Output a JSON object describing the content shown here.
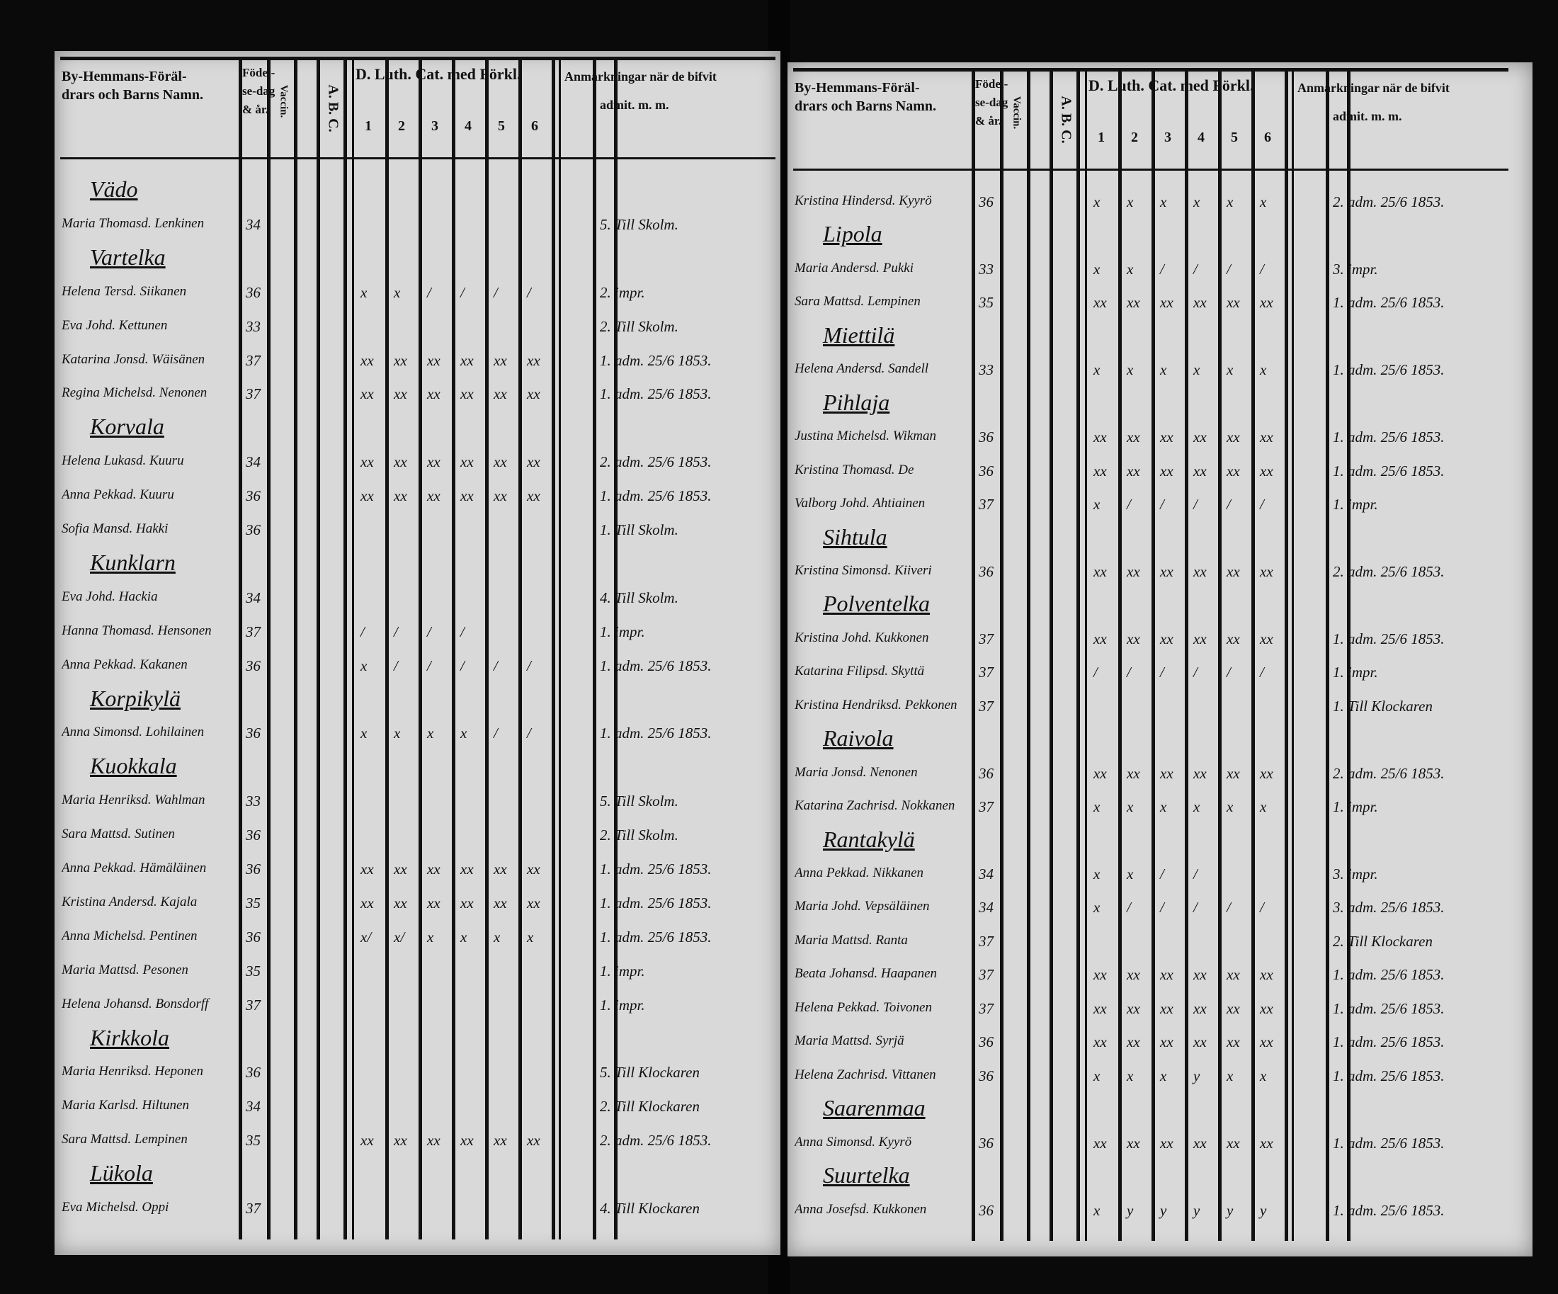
{
  "pages": [
    {
      "header": {
        "name": [
          "By-Hemmans-Föräl-",
          "drars och Barns Namn."
        ],
        "born": [
          "Födel-",
          "se-dag",
          "& år."
        ],
        "vacc": "Vaccin.",
        "abc": "A. B. C.",
        "cat": "D. Luth. Cat. med Förkl.",
        "cat_cols": [
          1,
          2,
          3,
          4,
          5,
          6
        ],
        "remark": [
          "Anmärkningar när de bifvit",
          "admit. m. m."
        ]
      },
      "rows": [
        {
          "village": "Vädo"
        },
        {
          "name": "Maria Thomasd. Lenkinen",
          "year": 34,
          "remark": "5. Till Skolm."
        },
        {
          "village": "Vartelka"
        },
        {
          "name": "Helena Tersd. Siikanen",
          "year": 36,
          "cat": [
            "x",
            "x",
            "/",
            "/",
            "/",
            "/"
          ],
          "remark": "2. impr."
        },
        {
          "name": "Eva Johd. Kettunen",
          "year": 33,
          "remark": "2. Till Skolm."
        },
        {
          "name": "Katarina Jonsd. Wäisänen",
          "year": 37,
          "cat": [
            "xx",
            "xx",
            "xx",
            "xx",
            "xx",
            "xx"
          ],
          "remark": "1. adm. 25/6 1853."
        },
        {
          "name": "Regina Michelsd. Nenonen",
          "year": 37,
          "cat": [
            "xx",
            "xx",
            "xx",
            "xx",
            "xx",
            "xx"
          ],
          "remark": "1. adm. 25/6 1853."
        },
        {
          "village": "Korvala"
        },
        {
          "name": "Helena Lukasd. Kuuru",
          "year": 34,
          "cat": [
            "xx",
            "xx",
            "xx",
            "xx",
            "xx",
            "xx"
          ],
          "remark": "2. adm. 25/6 1853."
        },
        {
          "name": "Anna Pekkad. Kuuru",
          "year": 36,
          "cat": [
            "xx",
            "xx",
            "xx",
            "xx",
            "xx",
            "xx"
          ],
          "remark": "1. adm. 25/6 1853."
        },
        {
          "name": "Sofia Mansd. Hakki",
          "year": 36,
          "remark": "1. Till Skolm."
        },
        {
          "village": "Kunklarn"
        },
        {
          "name": "Eva Johd. Hackia",
          "year": 34,
          "remark": "4. Till Skolm."
        },
        {
          "name": "Hanna Thomasd. Hensonen",
          "year": 37,
          "cat": [
            "/",
            "/",
            "/",
            "/",
            "",
            ""
          ],
          "remark": "1. impr."
        },
        {
          "name": "Anna Pekkad. Kakanen",
          "year": 36,
          "cat": [
            "x",
            "/",
            "/",
            "/",
            "/",
            "/"
          ],
          "remark": "1. adm. 25/6 1853."
        },
        {
          "village": "Korpikylä"
        },
        {
          "name": "Anna Simonsd. Lohilainen",
          "year": 36,
          "cat": [
            "x",
            "x",
            "x",
            "x",
            "/",
            "/"
          ],
          "remark": "1. adm. 25/6 1853."
        },
        {
          "village": "Kuokkala"
        },
        {
          "name": "Maria Henriksd. Wahlman",
          "year": 33,
          "remark": "5. Till Skolm."
        },
        {
          "name": "Sara Mattsd. Sutinen",
          "year": 36,
          "remark": "2. Till Skolm."
        },
        {
          "name": "Anna Pekkad. Hämäläinen",
          "year": 36,
          "cat": [
            "xx",
            "xx",
            "xx",
            "xx",
            "xx",
            "xx"
          ],
          "remark": "1. adm. 25/6 1853."
        },
        {
          "name": "Kristina Andersd. Kajala",
          "year": 35,
          "cat": [
            "xx",
            "xx",
            "xx",
            "xx",
            "xx",
            "xx"
          ],
          "remark": "1. adm. 25/6 1853."
        },
        {
          "name": "Anna Michelsd. Pentinen",
          "year": 36,
          "cat": [
            "x/",
            "x/",
            "x",
            "x",
            "x",
            "x"
          ],
          "remark": "1. adm. 25/6 1853."
        },
        {
          "name": "Maria Mattsd. Pesonen",
          "year": 35,
          "remark": "1. impr."
        },
        {
          "name": "Helena Johansd. Bonsdorff",
          "year": 37,
          "remark": "1. impr."
        },
        {
          "village": "Kirkkola"
        },
        {
          "name": "Maria Henriksd. Heponen",
          "year": 36,
          "remark": "5. Till Klockaren"
        },
        {
          "name": "Maria Karlsd. Hiltunen",
          "year": 34,
          "remark": "2. Till Klockaren"
        },
        {
          "name": "Sara Mattsd. Lempinen",
          "year": 35,
          "cat": [
            "xx",
            "xx",
            "xx",
            "xx",
            "xx",
            "xx"
          ],
          "remark": "2. adm. 25/6 1853."
        },
        {
          "village": "Lükola"
        },
        {
          "name": "Eva Michelsd. Oppi",
          "year": 37,
          "remark": "4. Till Klockaren"
        }
      ]
    },
    {
      "header": {
        "name": [
          "By-Hemmans-Föräl-",
          "drars och Barns Namn."
        ],
        "born": [
          "Födel-",
          "se-dag",
          "& år."
        ],
        "vacc": "Vaccin.",
        "abc": "A. B. C.",
        "cat": "D. Luth. Cat. med Förkl.",
        "cat_cols": [
          1,
          2,
          3,
          4,
          5,
          6
        ],
        "remark": [
          "Anmärkningar när de bifvit",
          "admit. m. m."
        ]
      },
      "rows": [
        {
          "name": "Kristina Hindersd. Kyyrö",
          "year": 36,
          "cat": [
            "x",
            "x",
            "x",
            "x",
            "x",
            "x"
          ],
          "remark": "2. adm. 25/6 1853."
        },
        {
          "village": "Lipola"
        },
        {
          "name": "Maria Andersd. Pukki",
          "year": 33,
          "cat": [
            "x",
            "x",
            "/",
            "/",
            "/",
            "/"
          ],
          "remark": "3. impr."
        },
        {
          "name": "Sara Mattsd. Lempinen",
          "year": 35,
          "cat": [
            "xx",
            "xx",
            "xx",
            "xx",
            "xx",
            "xx"
          ],
          "remark": "1. adm. 25/6 1853."
        },
        {
          "village": "Miettilä"
        },
        {
          "name": "Helena Andersd. Sandell",
          "year": 33,
          "cat": [
            "x",
            "x",
            "x",
            "x",
            "x",
            "x"
          ],
          "remark": "1. adm. 25/6 1853."
        },
        {
          "village": "Pihlaja"
        },
        {
          "name": "Justina Michelsd. Wikman",
          "year": 36,
          "cat": [
            "xx",
            "xx",
            "xx",
            "xx",
            "xx",
            "xx"
          ],
          "remark": "1. adm. 25/6 1853."
        },
        {
          "name": "Kristina Thomasd. De",
          "year": 36,
          "cat": [
            "xx",
            "xx",
            "xx",
            "xx",
            "xx",
            "xx"
          ],
          "remark": "1. adm. 25/6 1853."
        },
        {
          "name": "Valborg Johd. Ahtiainen",
          "year": 37,
          "cat": [
            "x",
            "/",
            "/",
            "/",
            "/",
            "/"
          ],
          "remark": "1. impr."
        },
        {
          "village": "Sihtula"
        },
        {
          "name": "Kristina Simonsd. Kiiveri",
          "year": 36,
          "cat": [
            "xx",
            "xx",
            "xx",
            "xx",
            "xx",
            "xx"
          ],
          "remark": "2. adm. 25/6 1853."
        },
        {
          "village": "Polventelka"
        },
        {
          "name": "Kristina Johd. Kukkonen",
          "year": 37,
          "cat": [
            "xx",
            "xx",
            "xx",
            "xx",
            "xx",
            "xx"
          ],
          "remark": "1. adm. 25/6 1853."
        },
        {
          "name": "Katarina Filipsd. Skyttä",
          "year": 37,
          "cat": [
            "/",
            "/",
            "/",
            "/",
            "/",
            "/"
          ],
          "remark": "1. impr."
        },
        {
          "name": "Kristina Hendriksd. Pekkonen",
          "year": 37,
          "remark": "1. Till Klockaren"
        },
        {
          "village": "Raivola"
        },
        {
          "name": "Maria Jonsd. Nenonen",
          "year": 36,
          "cat": [
            "xx",
            "xx",
            "xx",
            "xx",
            "xx",
            "xx"
          ],
          "remark": "2. adm. 25/6 1853."
        },
        {
          "name": "Katarina Zachrisd. Nokkanen",
          "year": 37,
          "cat": [
            "x",
            "x",
            "x",
            "x",
            "x",
            "x"
          ],
          "remark": "1. impr."
        },
        {
          "village": "Rantakylä"
        },
        {
          "name": "Anna Pekkad. Nikkanen",
          "year": 34,
          "cat": [
            "x",
            "x",
            "/",
            "/",
            "",
            ""
          ],
          "remark": "3. impr."
        },
        {
          "name": "Maria Johd. Vepsäläinen",
          "year": 34,
          "cat": [
            "x",
            "/",
            "/",
            "/",
            "/",
            "/"
          ],
          "remark": "3. adm. 25/6 1853."
        },
        {
          "name": "Maria Mattsd. Ranta",
          "year": 37,
          "remark": "2. Till Klockaren"
        },
        {
          "name": "Beata Johansd. Haapanen",
          "year": 37,
          "cat": [
            "xx",
            "xx",
            "xx",
            "xx",
            "xx",
            "xx"
          ],
          "remark": "1. adm. 25/6 1853."
        },
        {
          "name": "Helena Pekkad. Toivonen",
          "year": 37,
          "cat": [
            "xx",
            "xx",
            "xx",
            "xx",
            "xx",
            "xx"
          ],
          "remark": "1. adm. 25/6 1853."
        },
        {
          "name": "Maria Mattsd. Syrjä",
          "year": 36,
          "cat": [
            "xx",
            "xx",
            "xx",
            "xx",
            "xx",
            "xx"
          ],
          "remark": "1. adm. 25/6 1853."
        },
        {
          "name": "Helena Zachrisd. Vittanen",
          "year": 36,
          "cat": [
            "x",
            "x",
            "x",
            "y",
            "x",
            "x"
          ],
          "remark": "1. adm. 25/6 1853."
        },
        {
          "village": "Saarenmaa"
        },
        {
          "name": "Anna Simonsd. Kyyrö",
          "year": 36,
          "cat": [
            "xx",
            "xx",
            "xx",
            "xx",
            "xx",
            "xx"
          ],
          "remark": "1. adm. 25/6 1853."
        },
        {
          "village": "Suurtelka"
        },
        {
          "name": "Anna Josefsd. Kukkonen",
          "year": 36,
          "cat": [
            "x",
            "y",
            "y",
            "y",
            "y",
            "y"
          ],
          "remark": "1. adm. 25/6 1853."
        }
      ]
    }
  ]
}
